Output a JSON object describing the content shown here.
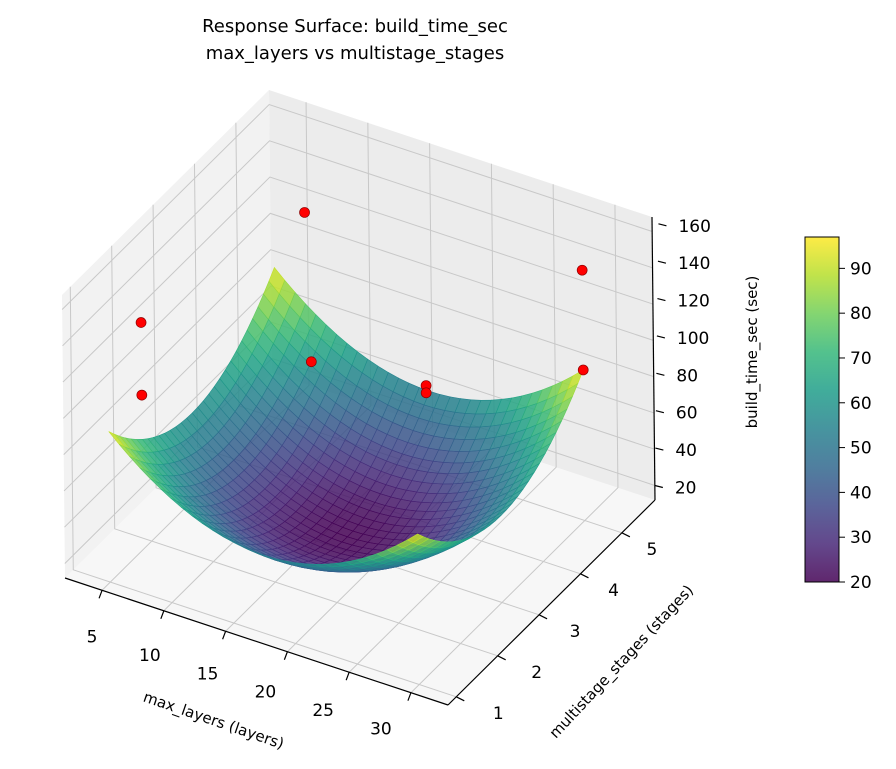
{
  "chart_data": {
    "type": "surface3d",
    "title": "Response Surface: build_time_sec",
    "subtitle": "max_layers vs multistage_stages",
    "xlabel": "max_layers (layers)",
    "ylabel": "multistage_stages (stages)",
    "zlabel": "build_time_sec (sec)",
    "xlim": [
      2,
      33
    ],
    "ylim": [
      0.8,
      5.8
    ],
    "zlim": [
      12,
      168
    ],
    "xticks": [
      "5",
      "10",
      "15",
      "20",
      "25",
      "30"
    ],
    "yticks": [
      "1",
      "2",
      "3",
      "4",
      "5"
    ],
    "zticks": [
      "20",
      "40",
      "60",
      "80",
      "100",
      "120",
      "140",
      "160"
    ],
    "grid": true,
    "colormap": "viridis",
    "colorbar": {
      "range": [
        20,
        97
      ],
      "ticks": [
        "20",
        "30",
        "40",
        "50",
        "60",
        "70",
        "80",
        "90"
      ]
    },
    "surface": {
      "x_range": [
        5,
        30
      ],
      "y_range": [
        1,
        5
      ],
      "min_z": 20,
      "center": [
        17.5,
        3
      ],
      "x_coef": 40,
      "y_coef": 35
    },
    "points": [
      {
        "x": 7.5,
        "y": 5,
        "z": 131
      },
      {
        "x": 5,
        "y": 1.8,
        "z": 137
      },
      {
        "x": 5,
        "y": 1.8,
        "z": 97
      },
      {
        "x": 12,
        "y": 3.8,
        "z": 86
      },
      {
        "x": 23,
        "y": 3.3,
        "z": 109
      },
      {
        "x": 23,
        "y": 3.3,
        "z": 105
      },
      {
        "x": 30,
        "y": 5,
        "z": 150
      },
      {
        "x": 30,
        "y": 5,
        "z": 95
      }
    ],
    "point_color": "#ff0000"
  }
}
